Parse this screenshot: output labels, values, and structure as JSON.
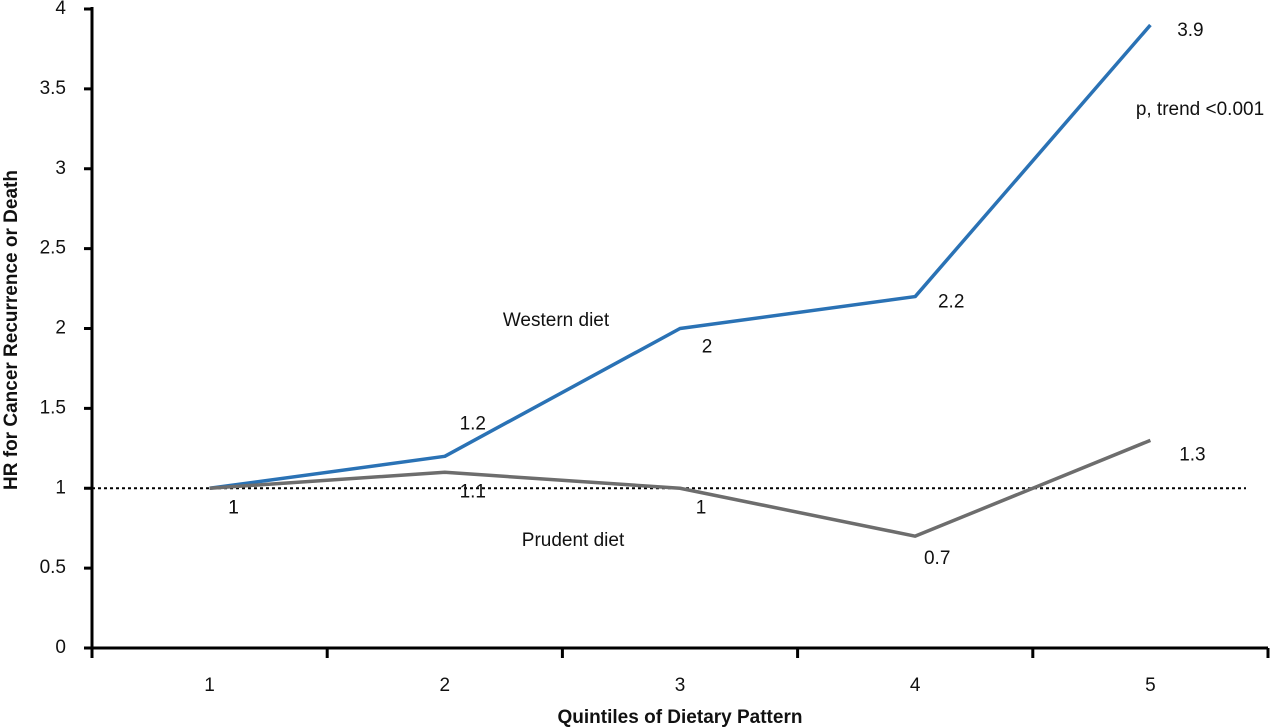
{
  "chart_data": {
    "type": "line",
    "x_label": "Quintiles of Dietary Pattern",
    "y_label": "HR for Cancer Recurrence or Death",
    "categories": [
      "1",
      "2",
      "3",
      "4",
      "5"
    ],
    "series": [
      {
        "name": "Western diet",
        "color": "#2a72b5",
        "values": [
          1,
          1.2,
          2,
          2.2,
          3.9
        ]
      },
      {
        "name": "Prudent diet",
        "color": "#6d6d6d",
        "values": [
          1,
          1.1,
          1,
          0.7,
          1.3
        ]
      }
    ],
    "reference_line": 1,
    "annotations": [
      "p, trend <0.001"
    ],
    "ylim": [
      0,
      4
    ],
    "yticks": [
      0,
      0.5,
      1,
      1.5,
      2,
      2.5,
      3,
      3.5,
      4
    ],
    "grid": false
  }
}
